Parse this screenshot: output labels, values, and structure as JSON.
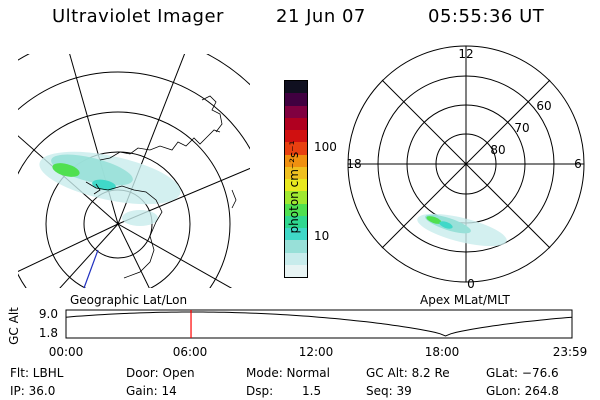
{
  "header": {
    "title": "Ultraviolet Imager",
    "date": "21 Jun 07",
    "time": "05:55:36 UT"
  },
  "geo_map": {
    "label": "Geographic Lat/Lon"
  },
  "apex_map": {
    "label": "Apex  MLat/MLT",
    "mlt_labels": [
      "12",
      "18",
      "6",
      "0"
    ],
    "lat_labels": [
      "60",
      "70",
      "80"
    ]
  },
  "colorbar": {
    "unit_label": "photon cm⁻²s⁻¹",
    "tick_labels": [
      "100",
      "10"
    ],
    "colors": [
      "#e8f4f4",
      "#c8ecec",
      "#98e0d8",
      "#40d8c8",
      "#30d890",
      "#50e050",
      "#a0e830",
      "#e8e820",
      "#f0c020",
      "#f09010",
      "#e84010",
      "#d01010",
      "#b00020",
      "#800040",
      "#400040",
      "#101020"
    ]
  },
  "orbit": {
    "axis_label": "GC Alt",
    "y_ticks": [
      "9.0",
      "1.8"
    ],
    "x_ticks": [
      "00:00",
      "06:00",
      "12:00",
      "18:00",
      "23:59"
    ],
    "current_marker_hour": 5.93,
    "marker_color": "#ff0000"
  },
  "status": {
    "flt": "Flt: LBHL",
    "ip": "IP: 36.0",
    "door": "Door: Open",
    "gain": "Gain: 14",
    "mode": "Mode: Normal",
    "dsp_label": "Dsp:",
    "dsp_value": "1.5",
    "gc_alt": "GC Alt: 8.2 Re",
    "seq": "Seq: 39",
    "glat": "GLat: −76.6",
    "glon": "GLon: 264.8"
  }
}
